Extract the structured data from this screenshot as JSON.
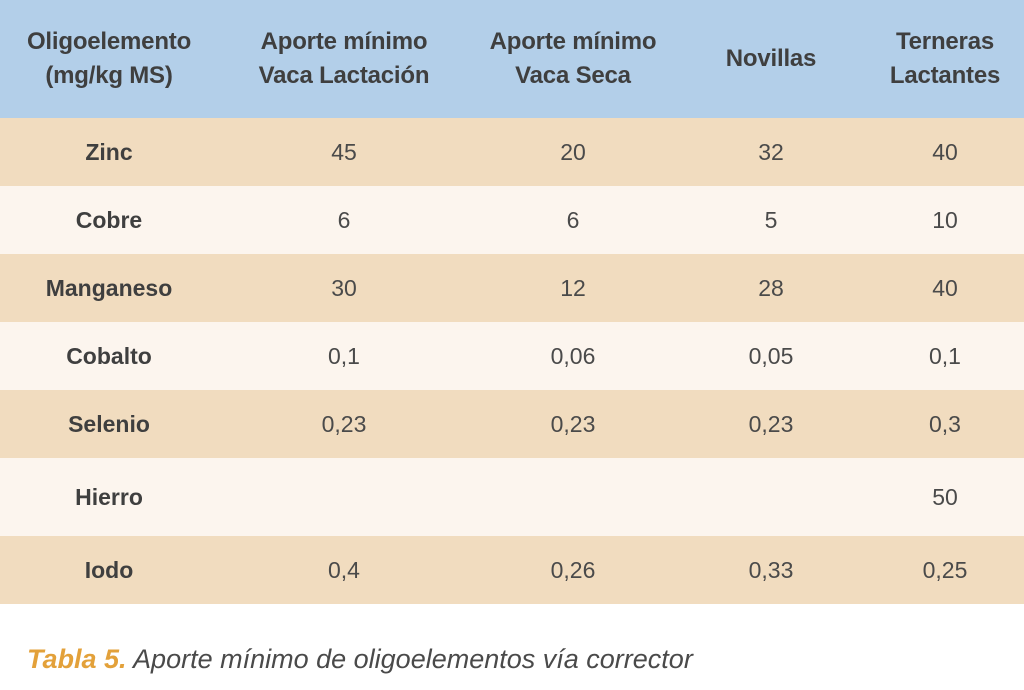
{
  "table": {
    "headers": [
      [
        "Oligoelemento",
        "(mg/kg MS)"
      ],
      [
        "Aporte mínimo",
        "Vaca Lactación"
      ],
      [
        "Aporte mínimo",
        "Vaca Seca"
      ],
      [
        "Novillas",
        ""
      ],
      [
        "Terneras",
        "Lactantes"
      ]
    ],
    "rows": [
      [
        "Zinc",
        "45",
        "20",
        "32",
        "40"
      ],
      [
        "Cobre",
        "6",
        "6",
        "5",
        "10"
      ],
      [
        "Manganeso",
        "30",
        "12",
        "28",
        "40"
      ],
      [
        "Cobalto",
        "0,1",
        "0,06",
        "0,05",
        "0,1"
      ],
      [
        "Selenio",
        "0,23",
        "0,23",
        "0,23",
        "0,3"
      ],
      [
        "Hierro",
        "",
        "",
        "",
        "50"
      ],
      [
        "Iodo",
        "0,4",
        "0,26",
        "0,33",
        "0,25"
      ]
    ]
  },
  "caption": {
    "label": "Tabla 5.",
    "text": " Aporte mínimo de oligoelementos vía corrector"
  },
  "colors": {
    "header_bg": "#b3cfe9",
    "band_bg": "#f1dcbf",
    "plain_bg": "#fcf5ee",
    "caption_label": "#e3a13a"
  }
}
